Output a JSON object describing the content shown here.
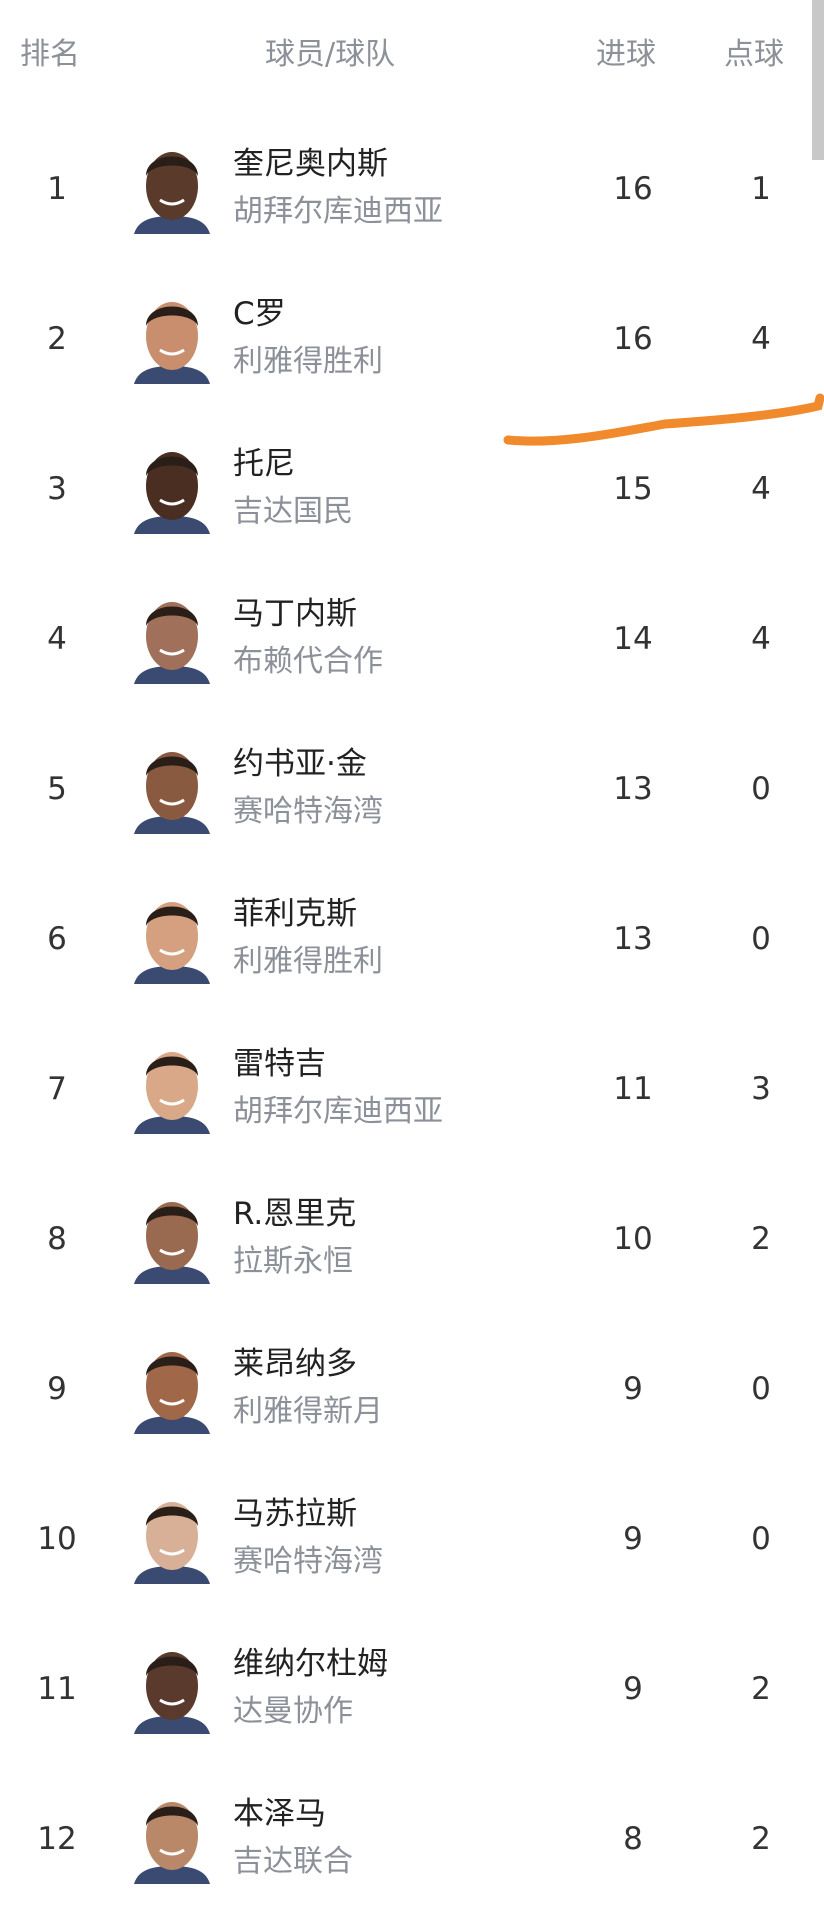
{
  "header": {
    "rank": "排名",
    "player_team": "球员/球队",
    "goals": "进球",
    "penalties": "点球"
  },
  "accent_color": "#f08a2c",
  "rows": [
    {
      "rank": "1",
      "name": "奎尼奥内斯",
      "team": "胡拜尔库迪西亚",
      "goals": "16",
      "penalties": "1",
      "skin": "#5a3a2a"
    },
    {
      "rank": "2",
      "name": "C罗",
      "team": "利雅得胜利",
      "goals": "16",
      "penalties": "4",
      "skin": "#c98e6e"
    },
    {
      "rank": "3",
      "name": "托尼",
      "team": "吉达国民",
      "goals": "15",
      "penalties": "4",
      "skin": "#4a2e22"
    },
    {
      "rank": "4",
      "name": "马丁内斯",
      "team": "布赖代合作",
      "goals": "14",
      "penalties": "4",
      "skin": "#a0705a"
    },
    {
      "rank": "5",
      "name": "约书亚·金",
      "team": "赛哈特海湾",
      "goals": "13",
      "penalties": "0",
      "skin": "#8a5a40"
    },
    {
      "rank": "6",
      "name": "菲利克斯",
      "team": "利雅得胜利",
      "goals": "13",
      "penalties": "0",
      "skin": "#d4a080"
    },
    {
      "rank": "7",
      "name": "雷特吉",
      "team": "胡拜尔库迪西亚",
      "goals": "11",
      "penalties": "3",
      "skin": "#d8a888"
    },
    {
      "rank": "8",
      "name": "R.恩里克",
      "team": "拉斯永恒",
      "goals": "10",
      "penalties": "2",
      "skin": "#9a6a50"
    },
    {
      "rank": "9",
      "name": "莱昂纳多",
      "team": "利雅得新月",
      "goals": "9",
      "penalties": "0",
      "skin": "#a06848"
    },
    {
      "rank": "10",
      "name": "马苏拉斯",
      "team": "赛哈特海湾",
      "goals": "9",
      "penalties": "0",
      "skin": "#d8b098"
    },
    {
      "rank": "11",
      "name": "维纳尔杜姆",
      "team": "达曼协作",
      "goals": "9",
      "penalties": "2",
      "skin": "#5a3a2c"
    },
    {
      "rank": "12",
      "name": "本泽马",
      "team": "吉达联合",
      "goals": "8",
      "penalties": "2",
      "skin": "#b88868"
    }
  ]
}
